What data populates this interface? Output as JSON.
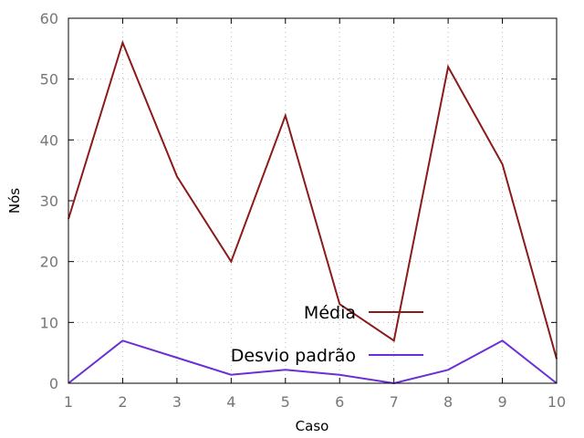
{
  "chart_data": {
    "type": "line",
    "xlabel": "Caso",
    "ylabel": "Nós",
    "x": [
      1,
      2,
      3,
      4,
      5,
      6,
      7,
      8,
      9,
      10
    ],
    "xlim": [
      1,
      10
    ],
    "ylim": [
      0,
      60
    ],
    "xticks": [
      "1",
      "2",
      "3",
      "4",
      "5",
      "6",
      "7",
      "8",
      "9",
      "10"
    ],
    "yticks": [
      "0",
      "10",
      "20",
      "30",
      "40",
      "50",
      "60"
    ],
    "grid": true,
    "legend_position": "bottom-right",
    "series": [
      {
        "name": "Média",
        "color": "#8b1a1a",
        "values": [
          27,
          56,
          34,
          20,
          44,
          13,
          7,
          52,
          36,
          4
        ]
      },
      {
        "name": "Desvio padrão",
        "color": "#6a2fd6",
        "values": [
          0,
          7,
          4.2,
          1.4,
          2.2,
          1.4,
          0,
          2.2,
          7,
          0
        ]
      }
    ]
  }
}
